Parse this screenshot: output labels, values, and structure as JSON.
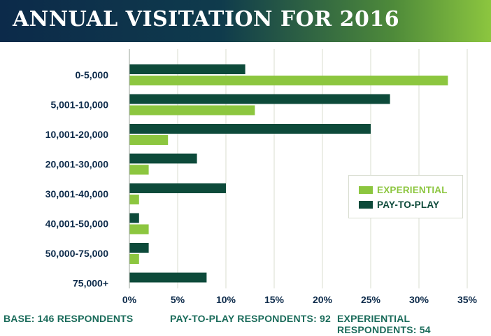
{
  "title": "ANNUAL VISITATION FOR 2016",
  "colors": {
    "experiential": "#8cc63f",
    "pay_to_play": "#0d4a3a",
    "category_label": "#0c2a4a",
    "footer": "#1a6b5a",
    "grid": "#d9dccf"
  },
  "footer": {
    "base": "BASE: 146 RESPONDENTS",
    "pay_to_play": "PAY-TO-PLAY RESPONDENTS: 92",
    "experiential": "EXPERIENTIAL RESPONDENTS: 54"
  },
  "chart_data": {
    "type": "bar",
    "orientation": "horizontal",
    "categories": [
      "0-5,000",
      "5,001-10,000",
      "10,001-20,000",
      "20,001-30,000",
      "30,001-40,000",
      "40,001-50,000",
      "50,000-75,000",
      "75,000+"
    ],
    "series": [
      {
        "name": "PAY-TO-PLAY",
        "values": [
          12,
          27,
          25,
          7,
          10,
          1,
          2,
          8
        ]
      },
      {
        "name": "EXPERIENTIAL",
        "values": [
          33,
          13,
          4,
          2,
          1,
          2,
          1,
          0
        ]
      }
    ],
    "xlim": [
      0,
      35
    ],
    "ticks": [
      "0%",
      "5%",
      "10%",
      "15%",
      "20%",
      "25%",
      "30%",
      "35%"
    ],
    "legend": [
      "EXPERIENTIAL",
      "PAY-TO-PLAY"
    ],
    "legend_position": "right-middle",
    "grid": true
  }
}
